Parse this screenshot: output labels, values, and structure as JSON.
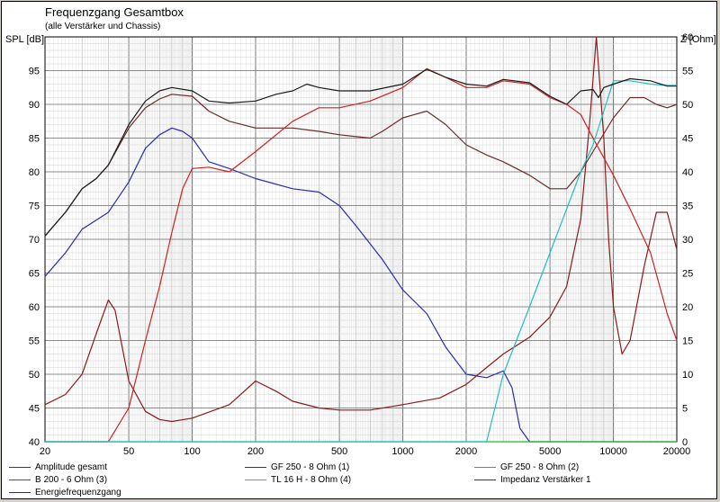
{
  "chart_data": {
    "type": "line",
    "title": "Frequenzgang Gesamtbox",
    "subtitle": "(alle Verstärker und Chassis)",
    "ylabel_left": "SPL [dB]",
    "ylabel_right": "Z [Ohm]",
    "x_scale": "log",
    "xlim": [
      20,
      20000
    ],
    "x_ticks": [
      "20",
      "50",
      "100",
      "200",
      "500",
      "1000",
      "2000",
      "5000",
      "10000",
      "20000"
    ],
    "ylim_left": [
      40,
      100
    ],
    "y_ticks_left": [
      "40",
      "45",
      "50",
      "55",
      "60",
      "65",
      "70",
      "75",
      "80",
      "85",
      "90",
      "95"
    ],
    "ylim_right": [
      0,
      60
    ],
    "y_ticks_right": [
      "0",
      "5",
      "10",
      "15",
      "20",
      "25",
      "30",
      "35",
      "40",
      "45",
      "50",
      "55",
      "60"
    ],
    "grid": true,
    "series": [
      {
        "name": "Amplitude gesamt",
        "color": "#6b2b2b",
        "axis": "left",
        "points": [
          [
            20,
            70.5
          ],
          [
            25,
            74
          ],
          [
            30,
            77.5
          ],
          [
            35,
            79
          ],
          [
            40,
            81
          ],
          [
            50,
            86.5
          ],
          [
            60,
            89.5
          ],
          [
            70,
            90.8
          ],
          [
            80,
            91.5
          ],
          [
            100,
            91.2
          ],
          [
            120,
            89
          ],
          [
            150,
            87.5
          ],
          [
            200,
            86.5
          ],
          [
            300,
            86.5
          ],
          [
            400,
            86
          ],
          [
            500,
            85.5
          ],
          [
            700,
            85
          ],
          [
            800,
            86
          ],
          [
            1000,
            88
          ],
          [
            1300,
            89
          ],
          [
            1600,
            87
          ],
          [
            2000,
            84
          ],
          [
            2500,
            82.5
          ],
          [
            3000,
            81.5
          ],
          [
            4000,
            79.5
          ],
          [
            5000,
            77.5
          ],
          [
            6000,
            77.5
          ],
          [
            7000,
            80
          ],
          [
            8000,
            83
          ],
          [
            10000,
            88
          ],
          [
            12000,
            91
          ],
          [
            14000,
            91
          ],
          [
            16000,
            90
          ],
          [
            18000,
            89.5
          ],
          [
            20000,
            90
          ]
        ]
      },
      {
        "name": "GF 250 - 8 Ohm (1)",
        "color": "#2b2bb5",
        "axis": "left",
        "points": [
          [
            20,
            64.5
          ],
          [
            25,
            68
          ],
          [
            30,
            71.5
          ],
          [
            40,
            74
          ],
          [
            50,
            78.5
          ],
          [
            60,
            83.5
          ],
          [
            70,
            85.5
          ],
          [
            80,
            86.5
          ],
          [
            90,
            86
          ],
          [
            100,
            85
          ],
          [
            120,
            81.5
          ],
          [
            150,
            80.5
          ],
          [
            200,
            79
          ],
          [
            300,
            77.5
          ],
          [
            400,
            77
          ],
          [
            500,
            75
          ],
          [
            600,
            72
          ],
          [
            800,
            67
          ],
          [
            1000,
            62.5
          ],
          [
            1300,
            59
          ],
          [
            1600,
            54
          ],
          [
            2000,
            50
          ],
          [
            2500,
            49.5
          ],
          [
            3000,
            50.5
          ],
          [
            3300,
            48
          ],
          [
            3600,
            42
          ],
          [
            4000,
            40
          ],
          [
            20000,
            40
          ]
        ]
      },
      {
        "name": "GF 250 - 8 Ohm (2)",
        "color": "#1fbf1f",
        "axis": "left",
        "points": [
          [
            20,
            40
          ],
          [
            20000,
            40
          ]
        ]
      },
      {
        "name": "Impedanz Verstärker 1",
        "color": "#8b1a1a",
        "axis": "right",
        "points": [
          [
            20,
            5.5
          ],
          [
            25,
            7
          ],
          [
            30,
            10
          ],
          [
            35,
            16
          ],
          [
            40,
            21
          ],
          [
            43,
            19.5
          ],
          [
            50,
            9
          ],
          [
            60,
            4.5
          ],
          [
            70,
            3.3
          ],
          [
            80,
            3
          ],
          [
            100,
            3.5
          ],
          [
            150,
            5.5
          ],
          [
            200,
            9
          ],
          [
            250,
            7.5
          ],
          [
            300,
            6
          ],
          [
            400,
            5
          ],
          [
            500,
            4.7
          ],
          [
            700,
            4.7
          ],
          [
            1000,
            5.5
          ],
          [
            1500,
            6.5
          ],
          [
            2000,
            8.5
          ],
          [
            2500,
            11
          ],
          [
            3000,
            13
          ],
          [
            4000,
            15.5
          ],
          [
            5000,
            18.5
          ],
          [
            6000,
            23
          ],
          [
            7000,
            33
          ],
          [
            7700,
            47
          ],
          [
            8300,
            60
          ],
          [
            9000,
            45
          ],
          [
            9500,
            30
          ],
          [
            10000,
            20
          ],
          [
            11000,
            13
          ],
          [
            12000,
            15
          ],
          [
            14000,
            26
          ],
          [
            16000,
            34
          ],
          [
            18000,
            34
          ],
          [
            20000,
            28.5
          ]
        ]
      },
      {
        "name": "B 200 - 6 Ohm (3)",
        "color": "#d02020",
        "axis": "left",
        "points": [
          [
            20,
            40
          ],
          [
            40,
            40
          ],
          [
            50,
            45
          ],
          [
            60,
            55
          ],
          [
            70,
            63
          ],
          [
            80,
            71
          ],
          [
            90,
            77.5
          ],
          [
            100,
            80.5
          ],
          [
            120,
            80.7
          ],
          [
            150,
            80
          ],
          [
            200,
            83
          ],
          [
            300,
            87.5
          ],
          [
            400,
            89.5
          ],
          [
            500,
            89.5
          ],
          [
            700,
            90.5
          ],
          [
            1000,
            92.5
          ],
          [
            1300,
            95.3
          ],
          [
            1600,
            94
          ],
          [
            2000,
            92.5
          ],
          [
            2500,
            92.5
          ],
          [
            3000,
            93.5
          ],
          [
            4000,
            93
          ],
          [
            5000,
            91
          ],
          [
            6000,
            90
          ],
          [
            7000,
            88.5
          ],
          [
            8000,
            85
          ],
          [
            10000,
            79.5
          ],
          [
            12000,
            74.5
          ],
          [
            15000,
            68
          ],
          [
            18000,
            59
          ],
          [
            20000,
            55
          ]
        ]
      },
      {
        "name": "TL 16 H - 8 Ohm (4)",
        "color": "#1fbfbf",
        "axis": "left",
        "points": [
          [
            20,
            40
          ],
          [
            2500,
            40
          ],
          [
            3000,
            50
          ],
          [
            4000,
            60
          ],
          [
            5000,
            68
          ],
          [
            6000,
            74.5
          ],
          [
            7000,
            80
          ],
          [
            8000,
            84
          ],
          [
            9000,
            89
          ],
          [
            10000,
            93.5
          ],
          [
            12000,
            93.5
          ],
          [
            15000,
            93
          ],
          [
            18000,
            92.8
          ],
          [
            20000,
            92.8
          ]
        ]
      },
      {
        "name": "Energiefrequenzgang",
        "color": "#2b2b80",
        "axis": "left",
        "points": []
      },
      {
        "name": "",
        "color": "#1a1a1a",
        "axis": "left",
        "points": [
          [
            20,
            70.5
          ],
          [
            25,
            74
          ],
          [
            30,
            77.5
          ],
          [
            35,
            79
          ],
          [
            40,
            81
          ],
          [
            50,
            87
          ],
          [
            60,
            90.5
          ],
          [
            70,
            92
          ],
          [
            80,
            92.5
          ],
          [
            100,
            92
          ],
          [
            120,
            90.5
          ],
          [
            150,
            90.2
          ],
          [
            200,
            90.5
          ],
          [
            250,
            91.5
          ],
          [
            300,
            92
          ],
          [
            350,
            93
          ],
          [
            400,
            92.5
          ],
          [
            500,
            92
          ],
          [
            700,
            92
          ],
          [
            1000,
            93
          ],
          [
            1300,
            95.2
          ],
          [
            1600,
            94
          ],
          [
            2000,
            93
          ],
          [
            2500,
            92.7
          ],
          [
            3000,
            93.7
          ],
          [
            4000,
            93.2
          ],
          [
            5000,
            91.2
          ],
          [
            6000,
            90
          ],
          [
            7000,
            92
          ],
          [
            8000,
            92.2
          ],
          [
            8500,
            91
          ],
          [
            9000,
            92.5
          ],
          [
            10000,
            93
          ],
          [
            12000,
            93.8
          ],
          [
            15000,
            93.5
          ],
          [
            18000,
            92.7
          ],
          [
            20000,
            92.7
          ]
        ]
      }
    ],
    "legend_placement": "bottom"
  }
}
